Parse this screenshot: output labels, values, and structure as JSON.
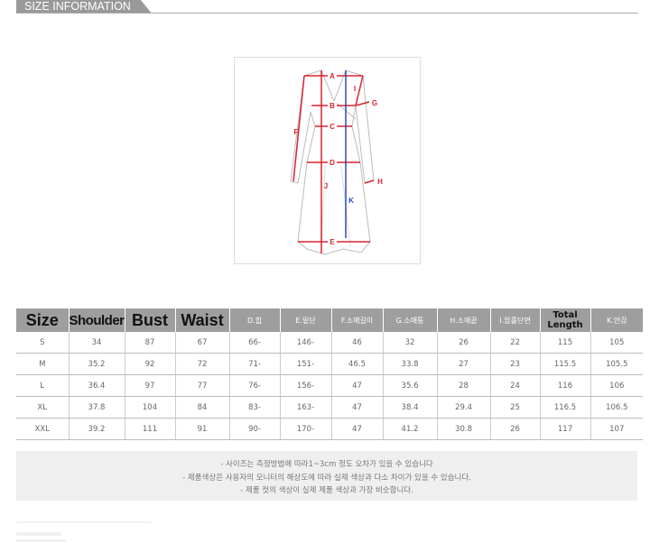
{
  "header": {
    "title": "SIZE INFORMATION"
  },
  "diagram": {
    "labels": {
      "A": "A",
      "B": "B",
      "C": "C",
      "D": "D",
      "E": "E",
      "F": "F",
      "G": "G",
      "H": "H",
      "I": "I",
      "J": "J",
      "K": "K"
    },
    "colors": {
      "measure": "#d9232e",
      "lining": "#2d46c8",
      "outline": "#bbbbbb"
    }
  },
  "table": {
    "headers": [
      "Size",
      "Shoulder",
      "Bust",
      "Waist",
      "D.힙",
      "E.밑단",
      "F.소매길이",
      "G.소매통",
      "H.소매끝",
      "I.암홀단면",
      "Total Length",
      "K.안감"
    ],
    "rows": [
      [
        "S",
        "34",
        "87",
        "67",
        "66-",
        "146-",
        "46",
        "32",
        "26",
        "22",
        "115",
        "105"
      ],
      [
        "M",
        "35.2",
        "92",
        "72",
        "71-",
        "151-",
        "46.5",
        "33.8",
        "27",
        "23",
        "115.5",
        "105.5"
      ],
      [
        "L",
        "36.4",
        "97",
        "77",
        "76-",
        "156-",
        "47",
        "35.6",
        "28",
        "24",
        "116",
        "106"
      ],
      [
        "XL",
        "37.8",
        "104",
        "84",
        "83-",
        "163-",
        "47",
        "38.4",
        "29.4",
        "25",
        "116.5",
        "106.5"
      ],
      [
        "XXL",
        "39.2",
        "111",
        "91",
        "90-",
        "170-",
        "47",
        "41.2",
        "30.8",
        "26",
        "117",
        "107"
      ]
    ]
  },
  "notes": [
    "- 사이즈는 측정방법에 따라1~3cm 정도 오차가 있을 수 있습니다",
    "- 제품색상은 사용자의 모니터의 해상도에 따라 실제 색상과 다소 차이가 있을 수 있습니다.",
    "- 제품 컷의 색상이 실제 제품 색상과 가장 비슷합니다."
  ]
}
